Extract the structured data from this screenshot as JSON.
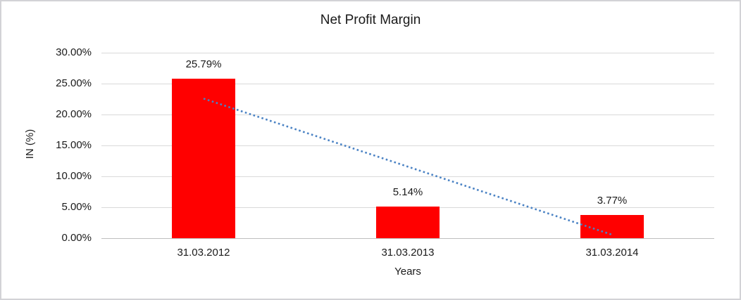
{
  "frame": {
    "background": "#ffffff",
    "border_color": "#d2d2d6"
  },
  "chart_data": {
    "type": "bar",
    "title": "Net Profit Margin",
    "xlabel": "Years",
    "ylabel": "IN (%)",
    "categories": [
      "31.03.2012",
      "31.03.2013",
      "31.03.2014"
    ],
    "values": [
      25.79,
      5.14,
      3.77
    ],
    "value_labels": [
      "25.79%",
      "5.14%",
      "3.77%"
    ],
    "ylim": [
      0,
      30
    ],
    "yticks": [
      {
        "value": 30,
        "label": "30.00%"
      },
      {
        "value": 25,
        "label": "25.00%"
      },
      {
        "value": 20,
        "label": "20.00%"
      },
      {
        "value": 15,
        "label": "15.00%"
      },
      {
        "value": 10,
        "label": "10.00%"
      },
      {
        "value": 5,
        "label": "5.00%"
      },
      {
        "value": 0,
        "label": "0.00%"
      }
    ],
    "grid": true,
    "legend": "none",
    "bar_color": "#FF0000",
    "trendline": {
      "type": "linear",
      "style": "dotted",
      "color": "#4A82C4"
    }
  }
}
